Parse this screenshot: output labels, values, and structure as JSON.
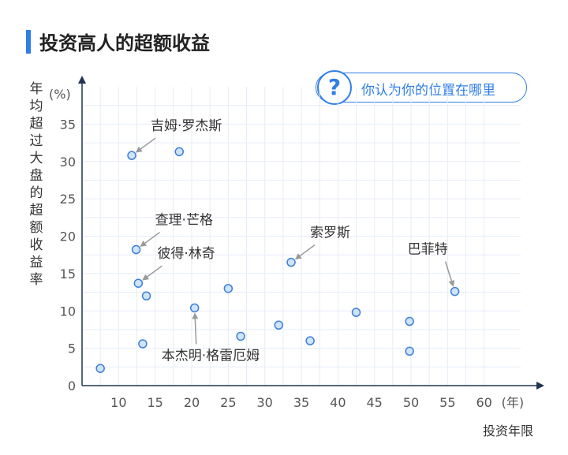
{
  "header": {
    "title": "投资高人的超额收益"
  },
  "callout": {
    "icon": "question-mark-icon",
    "symbol": "?",
    "text": "你认为你的位置在哪里"
  },
  "colors": {
    "accent": "#2f7ee6",
    "point_fill": "#cfe3fb",
    "point_stroke": "#3d7fd6",
    "grid": "#e6ecf7"
  },
  "chart_data": {
    "type": "scatter",
    "title": "投资高人的超额收益",
    "ylabel": "年均超过大盘的超额收益率",
    "y_unit": "(%)",
    "xlabel": "投资年限",
    "x_unit": "(年)",
    "xlim": [
      5,
      65
    ],
    "ylim": [
      0,
      40
    ],
    "xticks": [
      10,
      15,
      20,
      25,
      30,
      35,
      40,
      45,
      50,
      55,
      60
    ],
    "yticks": [
      0,
      5,
      10,
      15,
      20,
      25,
      30,
      35
    ],
    "grid": true,
    "points": [
      {
        "x": 7.5,
        "y": 2.3
      },
      {
        "x": 11.8,
        "y": 30.8
      },
      {
        "x": 12.4,
        "y": 18.2
      },
      {
        "x": 12.7,
        "y": 13.7
      },
      {
        "x": 13.3,
        "y": 5.6
      },
      {
        "x": 13.8,
        "y": 12.0
      },
      {
        "x": 18.3,
        "y": 31.3
      },
      {
        "x": 20.4,
        "y": 10.4
      },
      {
        "x": 25.0,
        "y": 13.0
      },
      {
        "x": 26.7,
        "y": 6.6
      },
      {
        "x": 31.9,
        "y": 8.1
      },
      {
        "x": 33.6,
        "y": 16.5
      },
      {
        "x": 36.2,
        "y": 6.0
      },
      {
        "x": 42.5,
        "y": 9.8
      },
      {
        "x": 49.8,
        "y": 8.6
      },
      {
        "x": 49.8,
        "y": 4.6
      },
      {
        "x": 56.0,
        "y": 12.6
      }
    ],
    "annotations": [
      {
        "text": "吉姆·罗杰斯",
        "point": 1,
        "dir": "up-right"
      },
      {
        "text": "查理·芒格",
        "point": 2,
        "dir": "up-right"
      },
      {
        "text": "彼得·林奇",
        "point": 3,
        "dir": "up-right"
      },
      {
        "text": "本杰明·格雷厄姆",
        "point": 7,
        "dir": "down"
      },
      {
        "text": "索罗斯",
        "point": 11,
        "dir": "up-right"
      },
      {
        "text": "巴菲特",
        "point": 16,
        "dir": "up-left"
      }
    ]
  }
}
